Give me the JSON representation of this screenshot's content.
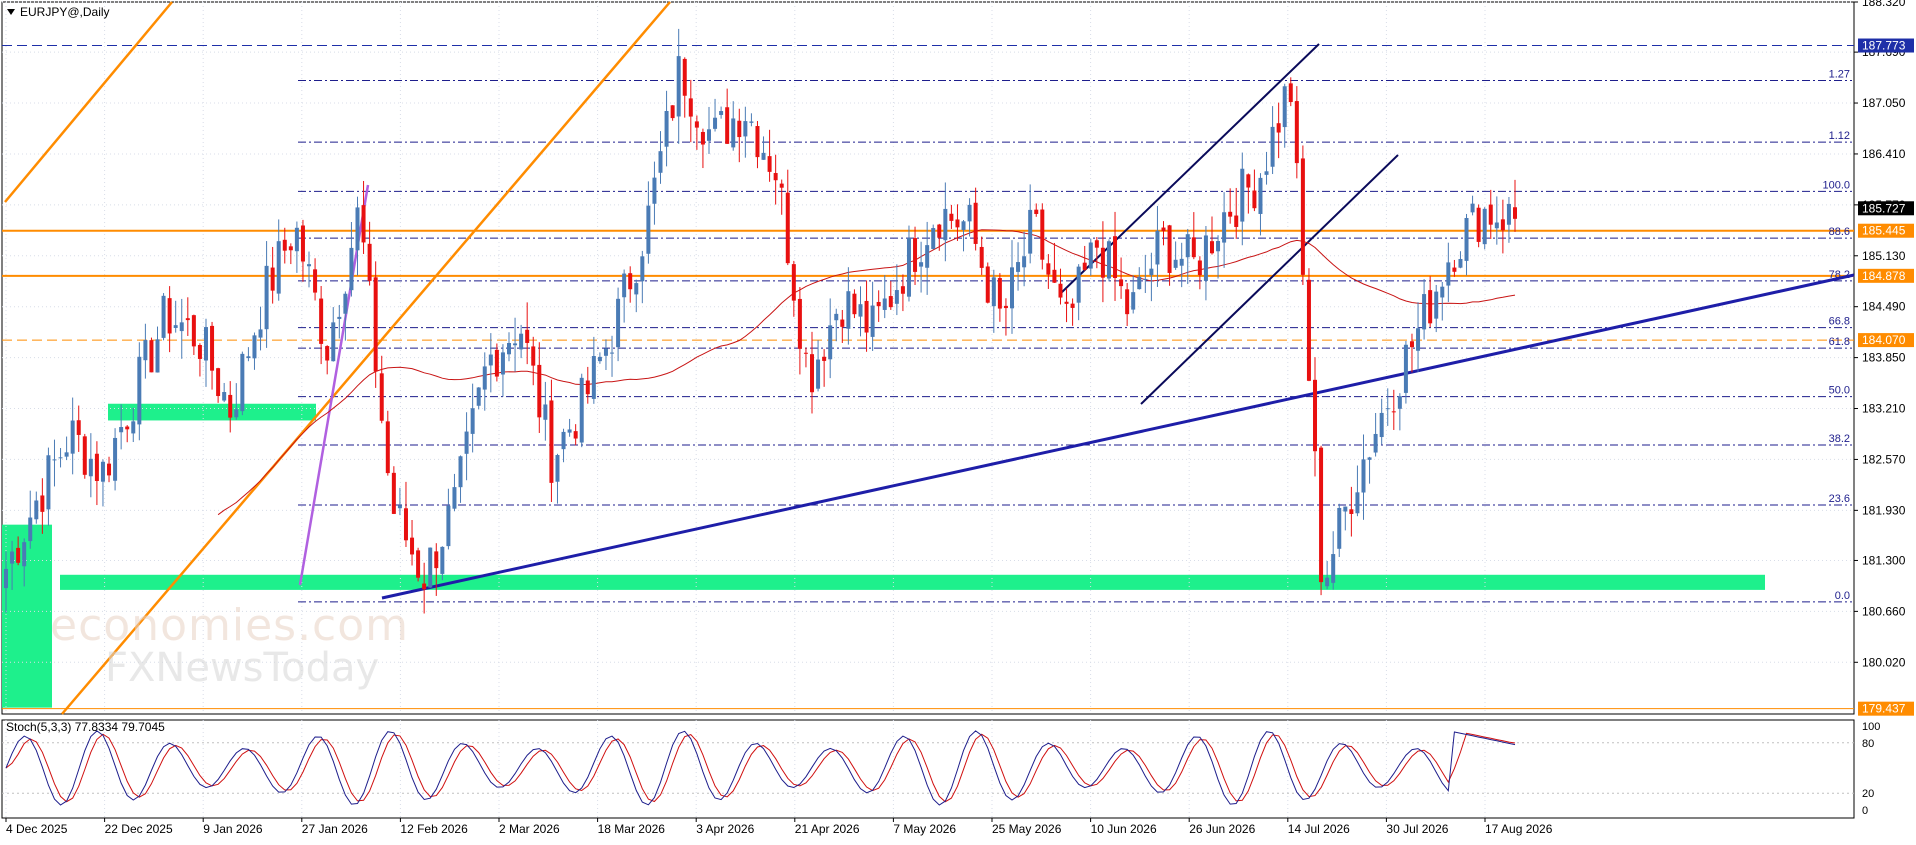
{
  "chart_data": {
    "type": "candlestick",
    "title": "EURJPY@,Daily",
    "symbol": "EURJPY@",
    "timeframe": "Daily",
    "y_axis_ticks": [
      "188.320",
      "187.690",
      "187.050",
      "186.410",
      "185.770",
      "185.130",
      "184.490",
      "183.850",
      "183.210",
      "182.570",
      "181.930",
      "181.300",
      "180.660",
      "180.020"
    ],
    "ylim": [
      179.37,
      188.32
    ],
    "x_axis_ticks": [
      "4 Dec 2025",
      "22 Dec 2025",
      "9 Jan 2026",
      "27 Jan 2026",
      "12 Feb 2026",
      "2 Mar 2026",
      "18 Mar 2026",
      "3 Apr 2026",
      "21 Apr 2026",
      "7 May 2026",
      "25 May 2026",
      "10 Jun 2026",
      "26 Jun 2026",
      "14 Jul 2026",
      "30 Jul 2026",
      "17 Aug 2026"
    ],
    "price_labels": [
      {
        "text": "187.773",
        "value": 187.773,
        "bg": "#1e2fa8",
        "fg": "#ffffff"
      },
      {
        "text": "185.727",
        "value": 185.727,
        "bg": "#000000",
        "fg": "#ffffff"
      },
      {
        "text": "185.445",
        "value": 185.445,
        "bg": "#ff8c00",
        "fg": "#ffffff"
      },
      {
        "text": "184.878",
        "value": 184.878,
        "bg": "#ff8c00",
        "fg": "#ffffff"
      },
      {
        "text": "184.070",
        "value": 184.07,
        "bg": "#ff8c00",
        "fg": "#ffffff"
      },
      {
        "text": "179.437",
        "value": 179.437,
        "bg": "#ff8c00",
        "fg": "#ffffff"
      }
    ],
    "fibonacci": {
      "low": 180.78,
      "high": 185.94,
      "levels": [
        {
          "label": "0.0",
          "ratio": 0
        },
        {
          "label": "23.6",
          "ratio": 0.236
        },
        {
          "label": "38.2",
          "ratio": 0.382
        },
        {
          "label": "50.0",
          "ratio": 0.5
        },
        {
          "label": "61.8",
          "ratio": 0.618
        },
        {
          "label": "66.8",
          "ratio": 0.668
        },
        {
          "label": "78.2",
          "ratio": 0.782
        },
        {
          "label": "88.6",
          "ratio": 0.886
        },
        {
          "label": "100.0",
          "ratio": 1.0
        },
        {
          "label": "1.12",
          "ratio": 1.12
        },
        {
          "label": "1.27",
          "ratio": 1.27
        }
      ]
    },
    "horizontal_lines": [
      {
        "value": 187.773,
        "style": "dashed",
        "color": "#1e2fa8"
      },
      {
        "value": 185.445,
        "style": "solid",
        "color": "#ff8c00"
      },
      {
        "value": 184.878,
        "style": "solid",
        "color": "#ff8c00"
      },
      {
        "value": 184.07,
        "style": "dashed",
        "color": "#ff8c00"
      },
      {
        "value": 179.437,
        "style": "solid",
        "color": "#ff8c00"
      }
    ],
    "support_zones": [
      {
        "from": 180.93,
        "to": 181.12,
        "color": "#1ef08c"
      },
      {
        "from": 183.06,
        "to": 183.27,
        "color": "#1ef08c"
      },
      {
        "from": 179.45,
        "to": 181.75,
        "color": "#1ef08c"
      }
    ],
    "ohlc_anchor_closes": [
      181.2,
      182.1,
      182.9,
      182.4,
      183.4,
      184.4,
      184.1,
      183.2,
      184.6,
      185.5,
      184.0,
      185.7,
      182.0,
      181.1,
      182.0,
      183.8,
      184.3,
      182.6,
      183.3,
      184.3,
      185.6,
      187.5,
      186.6,
      187.0,
      186.2,
      183.6,
      184.6,
      184.2,
      185.0,
      185.7,
      185.5,
      184.3,
      185.5,
      184.2,
      185.3,
      184.4,
      185.3,
      185.0,
      185.7,
      186.1,
      187.3,
      181.0,
      182.3,
      183.3,
      184.2,
      185.2,
      185.7,
      185.6
    ],
    "stochastic": {
      "label": "Stoch(5,3,3) 77.8334 79.7045",
      "main": 77.8334,
      "signal": 79.7045,
      "levels": [
        {
          "text": "100",
          "value": 100
        },
        {
          "text": "80",
          "value": 80
        },
        {
          "text": "20",
          "value": 20
        },
        {
          "text": "0",
          "value": 0
        }
      ],
      "main_color": "#1e1e8c",
      "signal_color": "#d01010"
    },
    "colors": {
      "bull": "#4a7bb5",
      "bear": "#e81010",
      "ma": "#c81414",
      "trend_blue": "#1e1ea8",
      "channel": "#0a0a5a",
      "orange": "#ff8c00",
      "purple": "#b060e0",
      "fib": "#1e1e8c",
      "grid": "#d8dde8"
    }
  },
  "watermark": {
    "line1": "economies.com",
    "line2": "FXNewsToday"
  }
}
